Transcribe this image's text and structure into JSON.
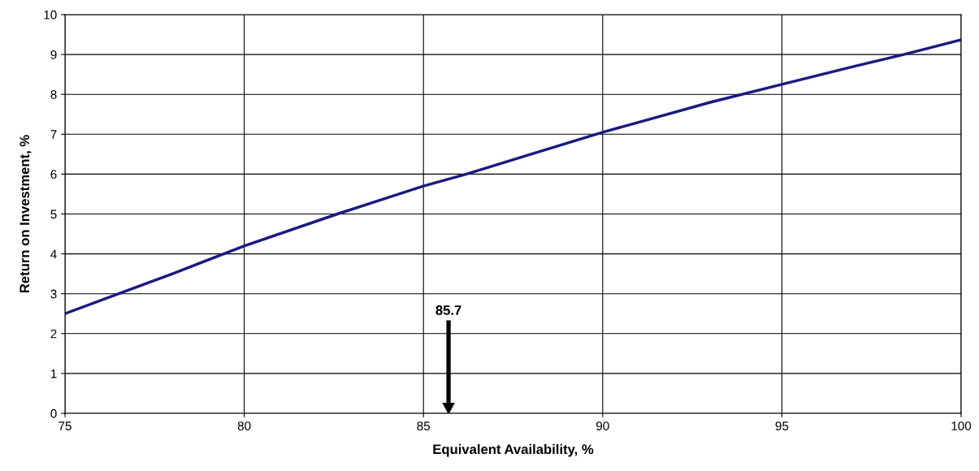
{
  "chart_data": {
    "type": "line",
    "xlabel": "Equivalent Availability, %",
    "ylabel": "Return on Investment, %",
    "x": [
      75,
      76.5,
      78,
      80,
      82.6,
      85,
      86.2,
      88,
      90,
      91,
      93,
      95,
      97,
      98.4,
      100
    ],
    "series": [
      {
        "color": "#1a1a80",
        "values": [
          2.5,
          3.0,
          3.5,
          4.2,
          5.0,
          5.7,
          6.0,
          6.5,
          7.05,
          7.3,
          7.8,
          8.25,
          8.7,
          9.0,
          9.37
        ]
      }
    ],
    "xlim": [
      75,
      100
    ],
    "xticks": [
      75,
      80,
      85,
      90,
      95,
      100
    ],
    "ylim": [
      0,
      10
    ],
    "yticks": [
      0,
      1,
      2,
      3,
      4,
      5,
      6,
      7,
      8,
      9,
      10
    ],
    "grid": true,
    "marker": "none",
    "line_style": "solid",
    "annotations": [
      "85.7"
    ]
  }
}
